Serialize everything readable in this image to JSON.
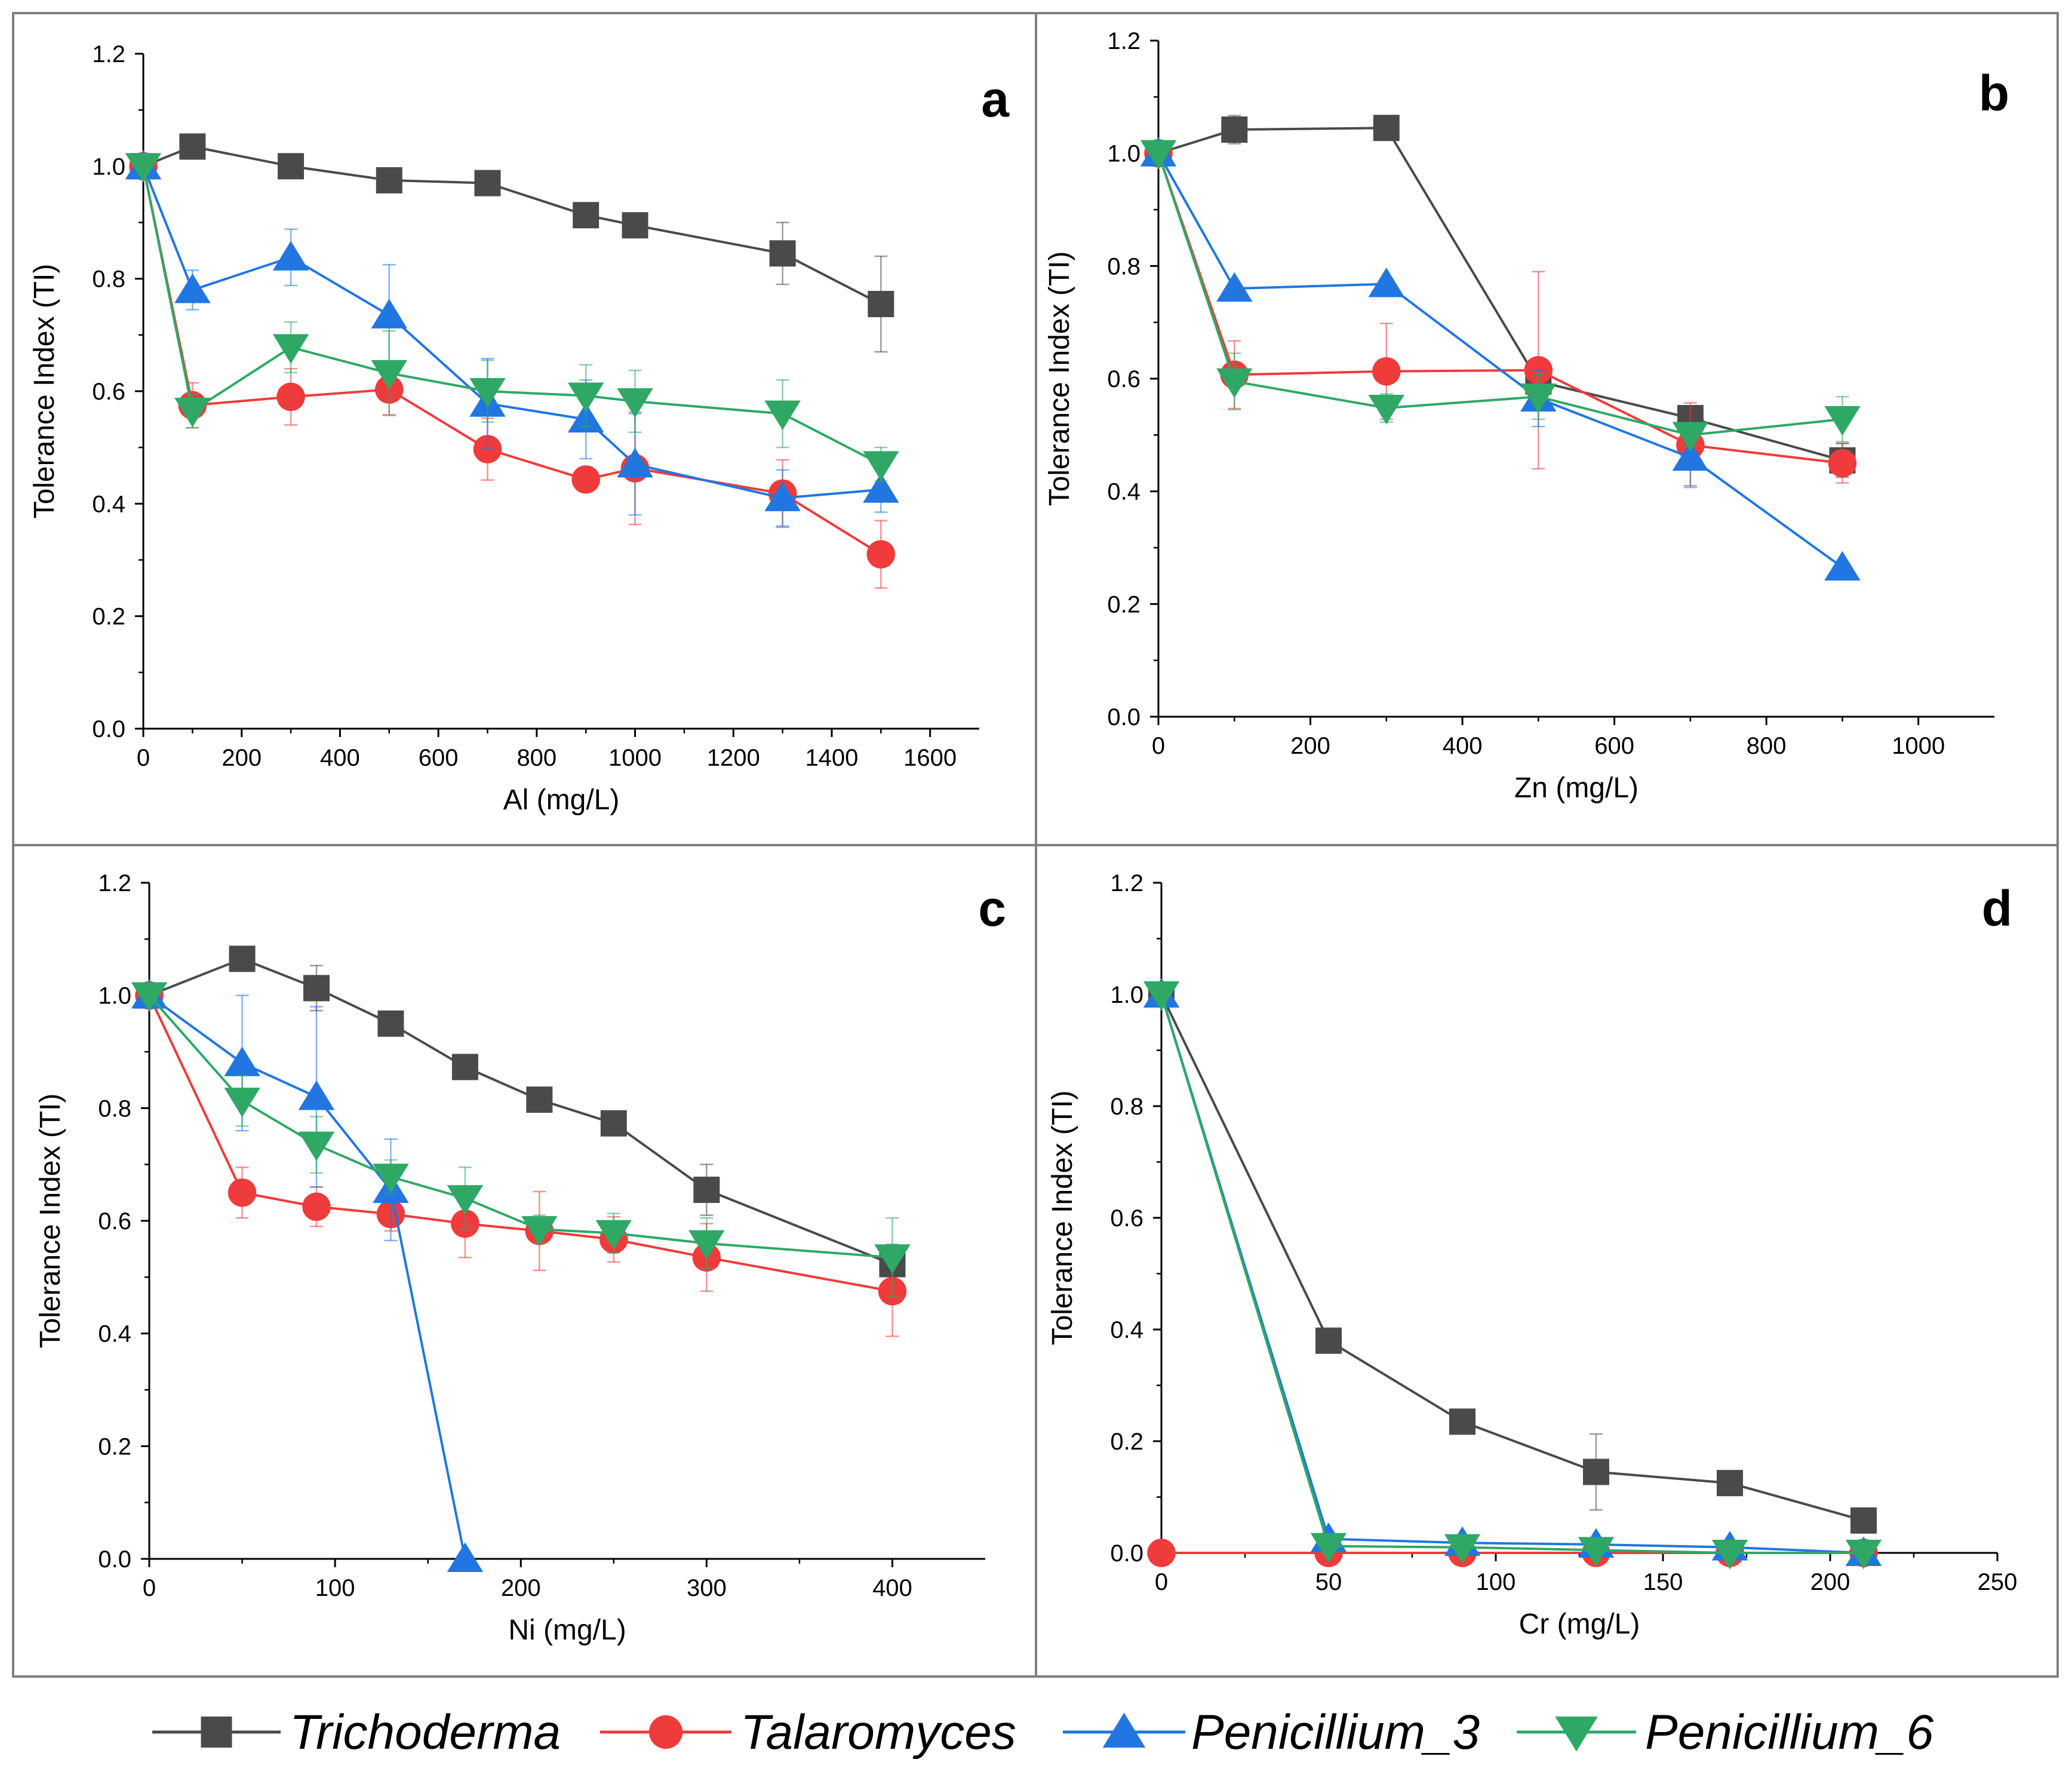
{
  "colors": {
    "Trichoderma": "#4a4a4a",
    "Talaromyces": "#ef3b3b",
    "Penicillium_3": "#2176e0",
    "Penicillium_6": "#2fa866",
    "axis": "#000000",
    "frame": "#7f7f7f"
  },
  "legend": {
    "entries": [
      {
        "name": "Trichoderma",
        "marker": "square",
        "label": "Trichoderma"
      },
      {
        "name": "Talaromyces",
        "marker": "circle",
        "label": "Talaromyces"
      },
      {
        "name": "Penicillium_3",
        "marker": "triangle-up",
        "label": "Penicillium_3"
      },
      {
        "name": "Penicillium_6",
        "marker": "triangle-down",
        "label": "Penicillium_6"
      }
    ]
  },
  "chart_data": [
    {
      "panel": "a",
      "type": "line",
      "xlabel": "Al (mg/L)",
      "ylabel": "Tolerance Index (TI)",
      "xlim": [
        0,
        1700
      ],
      "ylim": [
        0,
        1.2
      ],
      "xticks": [
        0,
        200,
        400,
        600,
        800,
        1000,
        1200,
        1400,
        1600
      ],
      "yticks": [
        0.0,
        0.2,
        0.4,
        0.6,
        0.8,
        1.0,
        1.2
      ],
      "series": [
        {
          "name": "Trichoderma",
          "x": [
            0,
            100,
            300,
            500,
            700,
            900,
            1000,
            1300,
            1500
          ],
          "y": [
            1.0,
            1.035,
            1.0,
            0.975,
            0.97,
            0.913,
            0.895,
            0.845,
            0.755
          ],
          "err": [
            0,
            0.01,
            0.01,
            0.01,
            0.01,
            0.015,
            0.01,
            0.055,
            0.085
          ]
        },
        {
          "name": "Talaromyces",
          "x": [
            0,
            100,
            300,
            500,
            700,
            900,
            1000,
            1300,
            1500
          ],
          "y": [
            1.0,
            0.575,
            0.59,
            0.603,
            0.497,
            0.443,
            0.463,
            0.418,
            0.31
          ],
          "err": [
            0,
            0.04,
            0.05,
            0.045,
            0.055,
            0.02,
            0.1,
            0.06,
            0.06
          ]
        },
        {
          "name": "Penicillium_3",
          "x": [
            0,
            100,
            300,
            500,
            700,
            900,
            1000,
            1300,
            1500
          ],
          "y": [
            1.0,
            0.78,
            0.838,
            0.735,
            0.578,
            0.55,
            0.47,
            0.41,
            0.425
          ],
          "err": [
            0,
            0.035,
            0.05,
            0.09,
            0.08,
            0.07,
            0.09,
            0.05,
            0.04
          ]
        },
        {
          "name": "Penicillium_6",
          "x": [
            0,
            100,
            300,
            500,
            700,
            900,
            1000,
            1300,
            1500
          ],
          "y": [
            1.0,
            0.565,
            0.678,
            0.632,
            0.6,
            0.592,
            0.582,
            0.56,
            0.47
          ],
          "err": [
            0,
            0.03,
            0.045,
            0.075,
            0.055,
            0.055,
            0.055,
            0.06,
            0.03
          ]
        }
      ]
    },
    {
      "panel": "b",
      "type": "line",
      "xlabel": "Zn (mg/L)",
      "ylabel": "Tolerance Index (TI)",
      "xlim": [
        0,
        1100
      ],
      "ylim": [
        0,
        1.2
      ],
      "xticks": [
        0,
        200,
        400,
        600,
        800,
        1000
      ],
      "yticks": [
        0.0,
        0.2,
        0.4,
        0.6,
        0.8,
        1.0,
        1.2
      ],
      "series": [
        {
          "name": "Trichoderma",
          "x": [
            0,
            100,
            300,
            500,
            700,
            900
          ],
          "y": [
            1.0,
            1.042,
            1.045,
            0.595,
            0.53,
            0.455
          ],
          "err": [
            0,
            0.025,
            0.01,
            0.02,
            0.02,
            0.03
          ]
        },
        {
          "name": "Talaromyces",
          "x": [
            0,
            100,
            300,
            500,
            700,
            900
          ],
          "y": [
            1.0,
            0.607,
            0.613,
            0.615,
            0.482,
            0.45
          ],
          "err": [
            0,
            0.06,
            0.085,
            0.175,
            0.075,
            0.035
          ]
        },
        {
          "name": "Penicillium_3",
          "x": [
            0,
            100,
            300,
            500,
            700,
            900
          ],
          "y": [
            1.0,
            0.76,
            0.768,
            0.565,
            0.46,
            0.265
          ],
          "err": [
            0,
            0.01,
            0.01,
            0.05,
            0.05,
            0.01
          ]
        },
        {
          "name": "Penicillium_6",
          "x": [
            0,
            100,
            300,
            500,
            700,
            900
          ],
          "y": [
            1.0,
            0.595,
            0.548,
            0.568,
            0.5,
            0.528
          ],
          "err": [
            0,
            0.05,
            0.025,
            0.04,
            0.02,
            0.04
          ]
        }
      ]
    },
    {
      "panel": "c",
      "type": "line",
      "xlabel": "Ni (mg/L)",
      "ylabel": "Tolerance Index (TI)",
      "xlim": [
        0,
        450
      ],
      "ylim": [
        0,
        1.2
      ],
      "xticks": [
        0,
        100,
        200,
        300,
        400
      ],
      "yticks": [
        0.0,
        0.2,
        0.4,
        0.6,
        0.8,
        1.0,
        1.2
      ],
      "series": [
        {
          "name": "Trichoderma",
          "x": [
            0,
            50,
            90,
            130,
            170,
            210,
            250,
            300,
            400
          ],
          "y": [
            1.0,
            1.065,
            1.013,
            0.95,
            0.873,
            0.815,
            0.773,
            0.655,
            0.523
          ],
          "err": [
            0,
            0.01,
            0.04,
            0.01,
            0.02,
            0.01,
            0.01,
            0.045,
            0.035
          ]
        },
        {
          "name": "Talaromyces",
          "x": [
            0,
            50,
            90,
            130,
            170,
            210,
            250,
            300,
            400
          ],
          "y": [
            1.0,
            0.65,
            0.625,
            0.612,
            0.595,
            0.582,
            0.567,
            0.535,
            0.475
          ],
          "err": [
            0,
            0.045,
            0.035,
            0.03,
            0.06,
            0.07,
            0.04,
            0.06,
            0.08
          ]
        },
        {
          "name": "Penicillium_3",
          "x": [
            0,
            50,
            90,
            130,
            170
          ],
          "y": [
            1.0,
            0.88,
            0.82,
            0.655,
            0.0
          ],
          "err": [
            0,
            0.12,
            0.16,
            0.09,
            0
          ]
        },
        {
          "name": "Penicillium_6",
          "x": [
            0,
            50,
            90,
            130,
            170,
            210,
            250,
            300,
            400
          ],
          "y": [
            1.0,
            0.813,
            0.735,
            0.678,
            0.64,
            0.585,
            0.578,
            0.56,
            0.535
          ],
          "err": [
            0,
            0.045,
            0.05,
            0.03,
            0.055,
            0.025,
            0.035,
            0.045,
            0.07
          ]
        }
      ]
    },
    {
      "panel": "d",
      "type": "line",
      "xlabel": "Cr (mg/L)",
      "ylabel": "Tolerance Index (TI)",
      "xlim": [
        0,
        250
      ],
      "ylim": [
        0,
        1.2
      ],
      "xticks": [
        0,
        50,
        100,
        150,
        200,
        250
      ],
      "yticks": [
        0.0,
        0.2,
        0.4,
        0.6,
        0.8,
        1.0,
        1.2
      ],
      "series": [
        {
          "name": "Trichoderma",
          "x": [
            0,
            50,
            90,
            130,
            170,
            210
          ],
          "y": [
            1.0,
            0.38,
            0.235,
            0.145,
            0.125,
            0.058
          ],
          "err": [
            0,
            0.01,
            0.01,
            0.068,
            0.01,
            0.01
          ]
        },
        {
          "name": "Talaromyces",
          "x": [
            0,
            50,
            90,
            130,
            170,
            210
          ],
          "y": [
            0.0,
            0.0,
            0.0,
            0.0,
            0.0,
            0.0
          ],
          "err": [
            0,
            0,
            0,
            0,
            0,
            0
          ]
        },
        {
          "name": "Penicillium_3",
          "x": [
            0,
            50,
            90,
            130,
            170,
            210
          ],
          "y": [
            1.0,
            0.025,
            0.018,
            0.015,
            0.01,
            0.0
          ],
          "err": [
            0,
            0,
            0,
            0,
            0,
            0
          ]
        },
        {
          "name": "Penicillium_6",
          "x": [
            0,
            50,
            90,
            130,
            170,
            210
          ],
          "y": [
            1.0,
            0.012,
            0.01,
            0.005,
            0.0,
            0.0
          ],
          "err": [
            0,
            0,
            0,
            0,
            0,
            0
          ]
        }
      ]
    }
  ]
}
